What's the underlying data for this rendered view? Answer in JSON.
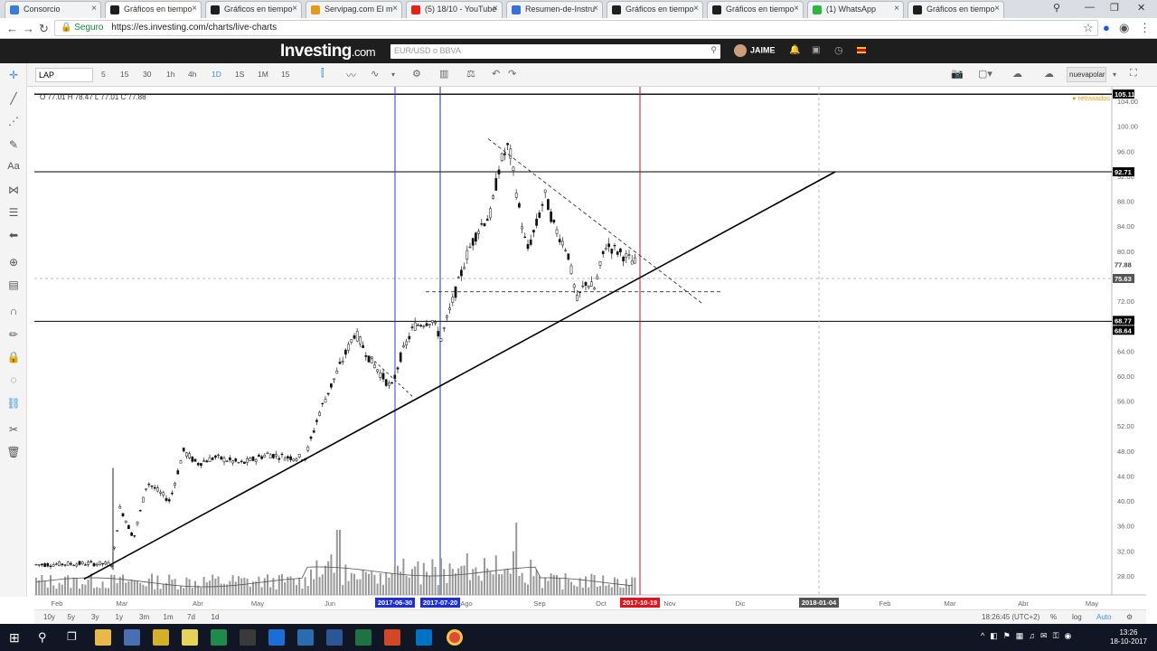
{
  "browser": {
    "tabs": [
      {
        "label": "Consorcio",
        "color": "#3b7dd8"
      },
      {
        "label": "Gráficos en tiempo",
        "color": "#1e1e1e"
      },
      {
        "label": "Gráficos en tiempo",
        "color": "#1e1e1e"
      },
      {
        "label": "Servipag.com El m",
        "color": "#e09a1c"
      },
      {
        "label": "(5) 18/10 - YouTube",
        "color": "#e62117"
      },
      {
        "label": "Resumen-de-Instru",
        "color": "#3b6fd8"
      },
      {
        "label": "Gráficos en tiempo",
        "color": "#1e1e1e"
      },
      {
        "label": "Gráficos en tiempo",
        "color": "#1e1e1e"
      },
      {
        "label": "(1) WhatsApp",
        "color": "#2bb741"
      },
      {
        "label": "Gráficos en tiempo",
        "color": "#1e1e1e"
      }
    ],
    "secure_label": "Seguro",
    "url": "https://es.investing.com/charts/live-charts"
  },
  "site": {
    "logo_main": "Investing",
    "logo_suffix": ".com",
    "search_placeholder": "EUR/USD o BBVA",
    "username": "JAIME"
  },
  "toolbar": {
    "symbol": "LAP",
    "timeframes": [
      "5",
      "15",
      "30",
      "1h",
      "4h",
      "1D",
      "1S",
      "1M",
      "15"
    ],
    "selected_timeframe": "1D",
    "layout_button": "nuevapolar"
  },
  "legend": {
    "ohlc": "O 77.01  H 78.47  L 77.01  C 77.88",
    "status": "● retrasados"
  },
  "chart_data": {
    "type": "candlestick",
    "symbol": "LAP",
    "y_ticks": [
      "104.00",
      "100.00",
      "96.00",
      "92.00",
      "88.00",
      "84.00",
      "80.00",
      "76.00",
      "72.00",
      "68.00",
      "64.00",
      "60.00",
      "56.00",
      "52.00",
      "48.00",
      "44.00",
      "40.00",
      "36.00",
      "32.00",
      "28.00"
    ],
    "x_ticks": [
      "Feb",
      "Mar",
      "Abr",
      "May",
      "Jun",
      "Jul",
      "Ago",
      "Sep",
      "Oct",
      "Nov",
      "Dic",
      "Ene",
      "Feb",
      "Mar",
      "Abr",
      "May"
    ],
    "price_labels": [
      {
        "value": "105.11",
        "color": "#000000"
      },
      {
        "value": "92.71",
        "color": "#000000"
      },
      {
        "value": "77.88",
        "color": "#ffffff"
      },
      {
        "value": "75.63",
        "color": "#555555"
      },
      {
        "value": "68.77",
        "color": "#000000"
      },
      {
        "value": "68.64",
        "color": "#000000"
      }
    ],
    "date_markers": [
      {
        "label": "2017-06-30",
        "color": "#1f2fd8"
      },
      {
        "label": "2017-07-20",
        "color": "#1f2fd8"
      },
      {
        "label": "2017-10-19",
        "color": "#e0141e"
      },
      {
        "label": "2018-01-04",
        "color": "#555555"
      }
    ],
    "horizontal_lines": [
      105.11,
      92.71,
      68.77
    ],
    "trend_line": {
      "from": {
        "x": "Feb",
        "y": 27.5
      },
      "to": {
        "x": "Dic",
        "y": 92.71
      }
    },
    "ohlc": {
      "open": 77.01,
      "high": 78.47,
      "low": 77.01,
      "close": 77.88
    }
  },
  "range_bar": {
    "ranges": [
      "10y",
      "5y",
      "3y",
      "1y",
      "3m",
      "1m",
      "7d",
      "1d"
    ],
    "timestamp": "18:26:45 (UTC+2)",
    "opts": [
      "%",
      "log",
      "Auto"
    ]
  },
  "taskbar": {
    "time": "13:26",
    "date": "18-10-2017"
  }
}
